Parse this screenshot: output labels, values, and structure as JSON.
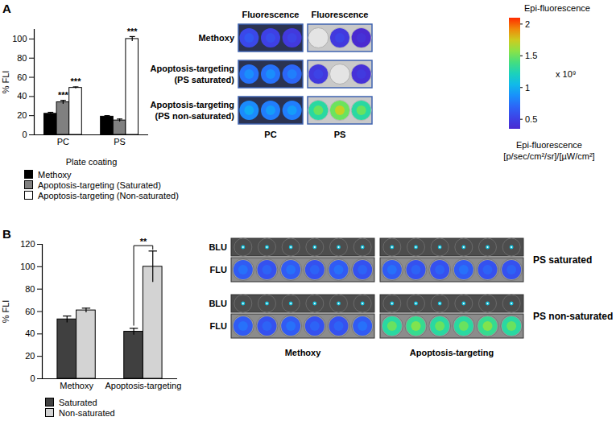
{
  "panel_labels": [
    "A",
    "B"
  ],
  "chart_data": [
    {
      "type": "bar",
      "categories": [
        "PC",
        "PS"
      ],
      "x_label": "Plate coating",
      "y_label": "% FLI",
      "ylim": [
        0,
        110
      ],
      "yticks": [
        0,
        20,
        40,
        60,
        80,
        100
      ],
      "legend": "bottom",
      "series": [
        {
          "name": "Methoxy",
          "color": "#000000",
          "values": [
            22,
            19
          ],
          "errors": [
            1.5,
            1
          ]
        },
        {
          "name": "Apoptosis-targeting (Saturated)",
          "color": "#808080",
          "values": [
            34,
            15
          ],
          "errors": [
            2,
            1.5
          ]
        },
        {
          "name": "Apoptosis-targeting (Non-saturated)",
          "color": "#ffffff",
          "values": [
            49,
            100
          ],
          "errors": [
            1,
            2.5
          ]
        }
      ],
      "annotations": [
        {
          "text": "***",
          "category": "PC",
          "series": "Apoptosis-targeting (Saturated)"
        },
        {
          "text": "***",
          "category": "PC",
          "series": "Apoptosis-targeting (Non-saturated)"
        },
        {
          "text": "***",
          "category": "PS",
          "series": "Apoptosis-targeting (Non-saturated)"
        }
      ]
    },
    {
      "type": "bar",
      "categories": [
        "Methoxy",
        "Apoptosis-targeting"
      ],
      "y_label": "% FLI",
      "ylim": [
        0,
        120
      ],
      "yticks": [
        0,
        20,
        40,
        60,
        80,
        100,
        120
      ],
      "legend": "bottom",
      "series": [
        {
          "name": "Saturated",
          "color": "#404040",
          "values": [
            53,
            42
          ],
          "errors": [
            3,
            3
          ]
        },
        {
          "name": "Non-saturated",
          "color": "#d3d3d3",
          "values": [
            61,
            100
          ],
          "errors": [
            2,
            14
          ]
        }
      ],
      "annotations": [
        {
          "text": "**",
          "category": "Apoptosis-targeting",
          "from": "Saturated",
          "to": "Non-saturated"
        }
      ]
    }
  ],
  "images": [
    {
      "column_headers": [
        "Fluorescence",
        "Fluorescence"
      ],
      "column_labels": [
        "PC",
        "PS"
      ],
      "rows": [
        {
          "label": [
            "Methoxy"
          ],
          "wells": [
            [
              0.55,
              0.5,
              0.45
            ],
            [
              0.3,
              0.45,
              0.35
            ]
          ]
        },
        {
          "label": [
            "Apoptosis-targeting",
            "(PS saturated)"
          ],
          "wells": [
            [
              0.75,
              0.75,
              0.7
            ],
            [
              0.45,
              0.3,
              0.4
            ]
          ]
        },
        {
          "label": [
            "Apoptosis-targeting",
            "(PS non-saturated)"
          ],
          "wells": [
            [
              0.85,
              0.8,
              0.8
            ],
            [
              1.3,
              1.5,
              1.3
            ]
          ]
        }
      ]
    },
    {
      "column_labels": [
        "Methoxy",
        "Apoptosis-targeting"
      ],
      "groups": [
        {
          "label": "PS saturated",
          "rows": [
            {
              "label": "BLU",
              "marker": "dot",
              "wells": [
                [
                  1.1,
                  1.1,
                  1.1,
                  1.1,
                  1.1,
                  1.1
                ],
                [
                  1.1,
                  1.1,
                  1.1,
                  1.1,
                  1.1,
                  1.1
                ]
              ]
            },
            {
              "label": "FLU",
              "marker": "blob",
              "wells": [
                [
                  0.65,
                  0.6,
                  0.65,
                  0.6,
                  0.65,
                  0.6
                ],
                [
                  0.65,
                  0.6,
                  0.6,
                  0.65,
                  0.6,
                  0.6
                ]
              ]
            }
          ]
        },
        {
          "label": "PS non-saturated",
          "rows": [
            {
              "label": "BLU",
              "marker": "dot",
              "wells": [
                [
                  1.1,
                  1.1,
                  1.1,
                  1.1,
                  1.1,
                  1.1
                ],
                [
                  1.1,
                  1.1,
                  1.1,
                  1.1,
                  1.1,
                  1.1
                ]
              ]
            },
            {
              "label": "FLU",
              "marker": "blob",
              "wells": [
                [
                  0.65,
                  0.6,
                  0.65,
                  0.6,
                  0.6,
                  0.65
                ],
                [
                  1.3,
                  1.35,
                  1.3,
                  1.3,
                  1.35,
                  1.3
                ]
              ]
            }
          ]
        }
      ]
    }
  ],
  "colorbar": {
    "title": "Epi-fluorescence",
    "range": [
      0.35,
      2.1
    ],
    "ticks": [
      0.5,
      1,
      1.5,
      2
    ],
    "multiplier": "x 10⁹",
    "units": [
      "Epi-fluorescence",
      "[p/sec/cm²/sr]/[µW/cm²]"
    ]
  }
}
